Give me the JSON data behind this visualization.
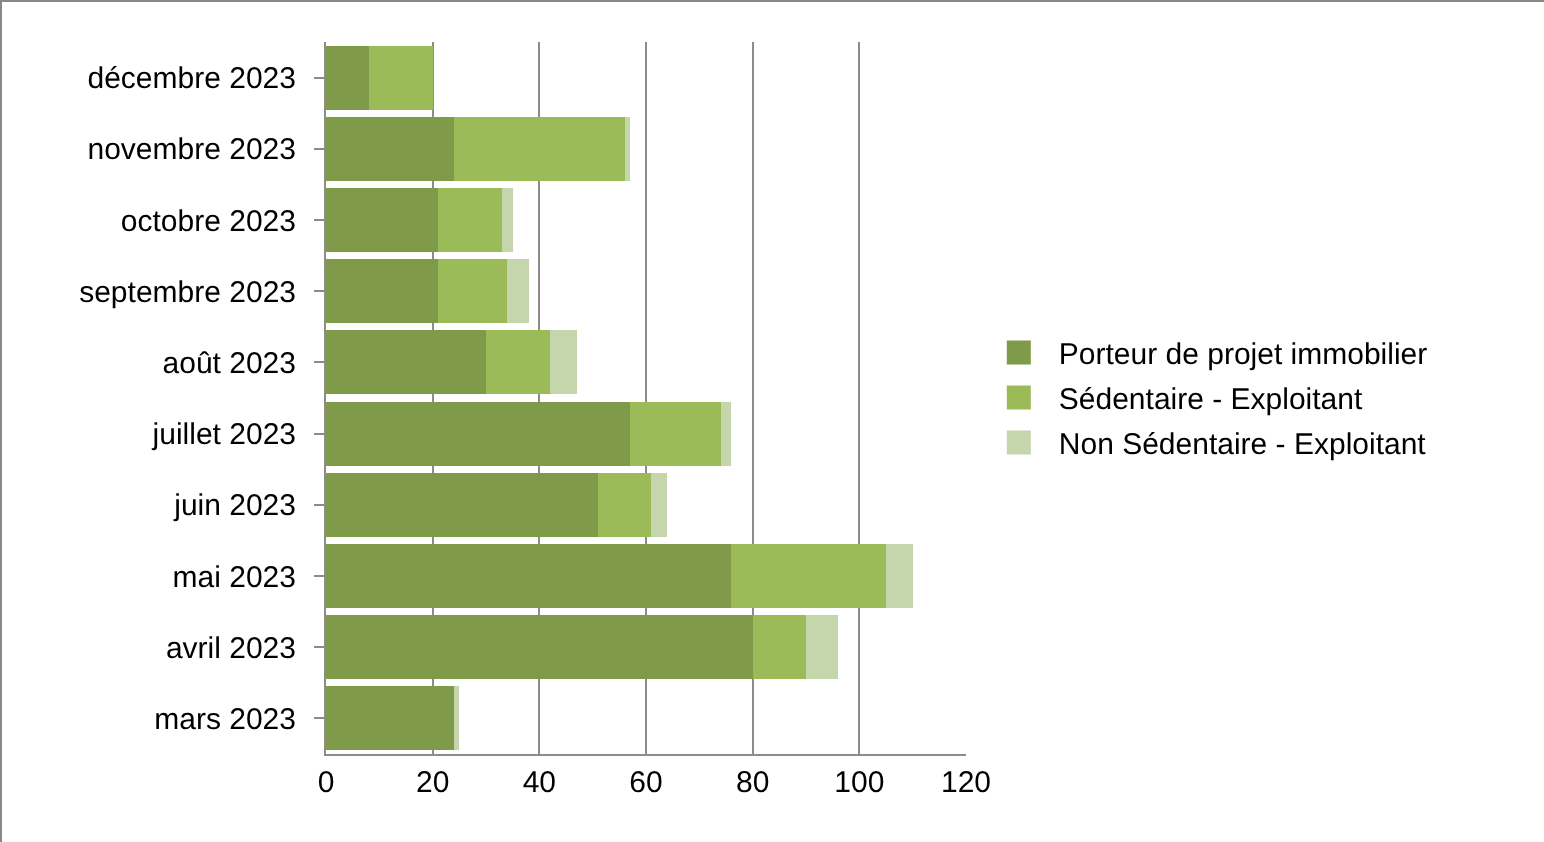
{
  "chart_data": {
    "type": "bar",
    "orientation": "horizontal",
    "stacked": true,
    "categories": [
      "décembre 2023",
      "novembre 2023",
      "octobre 2023",
      "septembre 2023",
      "août 2023",
      "juillet 2023",
      "juin 2023",
      "mai 2023",
      "avril 2023",
      "mars 2023"
    ],
    "series": [
      {
        "name": "Porteur de projet immobilier",
        "color": "#7f9a48",
        "values": [
          8,
          24,
          21,
          21,
          30,
          57,
          51,
          76,
          80,
          24
        ]
      },
      {
        "name": "Sédentaire - Exploitant",
        "color": "#9bbb59",
        "values": [
          12,
          32,
          12,
          13,
          12,
          17,
          10,
          29,
          10,
          0
        ]
      },
      {
        "name": "Non Sédentaire - Exploitant",
        "color": "#c6d6ac",
        "values": [
          0,
          1,
          2,
          4,
          5,
          2,
          3,
          5,
          6,
          1
        ]
      }
    ],
    "xlim": [
      0,
      120
    ],
    "xticks": [
      0,
      20,
      40,
      60,
      80,
      100,
      120
    ],
    "grid": "x",
    "legend": "right"
  }
}
